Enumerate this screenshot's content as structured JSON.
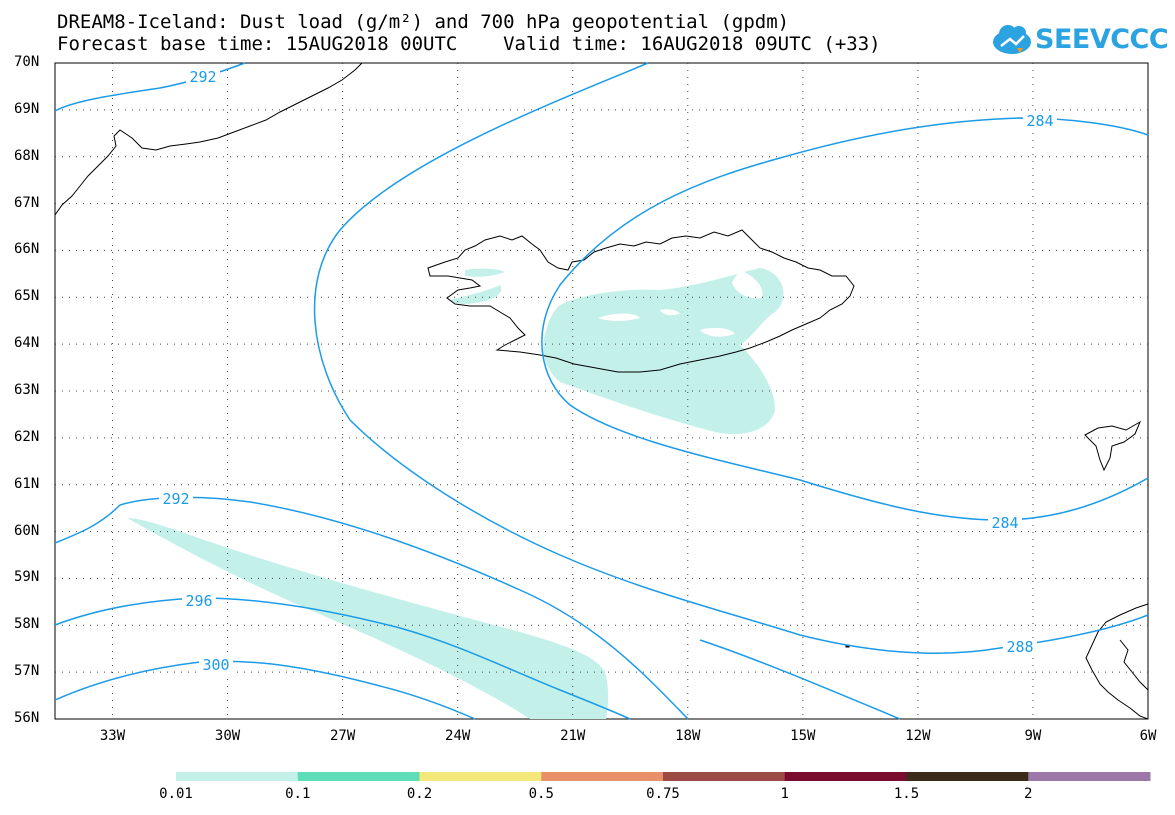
{
  "header": {
    "title_line1": "DREAM8-Iceland: Dust load (g/m²) and 700 hPa geopotential (gpdm)",
    "title_line2": "Forecast base time: 15AUG2018 00UTC    Valid time: 16AUG2018 09UTC (+33)"
  },
  "logo": {
    "text": "SEEVCCC",
    "icon": "cloud-icon",
    "color": "#2aa3e0"
  },
  "map": {
    "lat_labels": [
      "70N",
      "69N",
      "68N",
      "67N",
      "66N",
      "65N",
      "64N",
      "63N",
      "62N",
      "61N",
      "60N",
      "59N",
      "58N",
      "57N",
      "56N"
    ],
    "lon_labels": [
      "33W",
      "30W",
      "27W",
      "24W",
      "21W",
      "18W",
      "15W",
      "12W",
      "9W",
      "6W"
    ],
    "extent": {
      "lon": [
        -34.5,
        -6
      ],
      "lat": [
        56,
        70
      ]
    },
    "contour_color": "#1b9be8",
    "dust_color": "#c4f0ea",
    "contour_labels": [
      "292",
      "284",
      "292",
      "284",
      "296",
      "288",
      "300"
    ]
  },
  "colorbar": {
    "colors": [
      "#c4f0ea",
      "#5fddb6",
      "#f5e87a",
      "#e9906a",
      "#9c4a44",
      "#7a0c2e",
      "#3b2b18",
      "#9c78a8"
    ],
    "labels": [
      "0.01",
      "0.1",
      "0.2",
      "0.5",
      "0.75",
      "1",
      "1.5",
      "2"
    ]
  }
}
